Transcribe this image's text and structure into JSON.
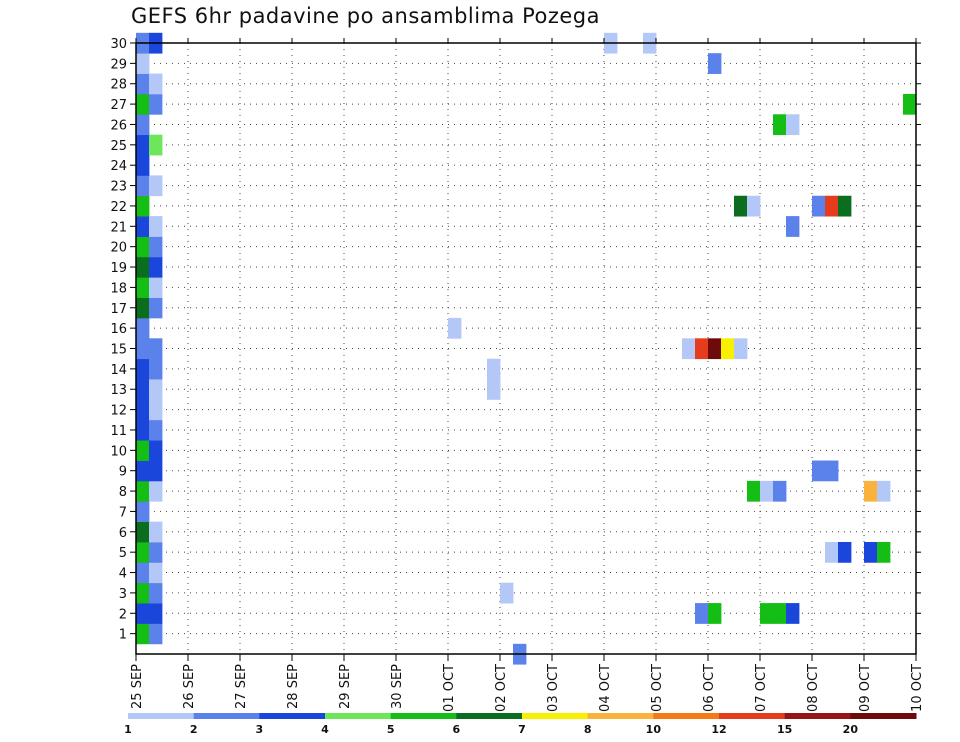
{
  "chart_data": {
    "type": "heatmap",
    "title": "GEFS 6hr padavine po ansamblima Pozega",
    "x_ticks": [
      "25 SEP",
      "26 SEP",
      "27 SEP",
      "28 SEP",
      "29 SEP",
      "30 SEP",
      "01 OCT",
      "02 OCT",
      "03 OCT",
      "04 OCT",
      "05 OCT",
      "06 OCT",
      "07 OCT",
      "08 OCT",
      "09 OCT",
      "10 OCT"
    ],
    "y_ticks": [
      1,
      2,
      3,
      4,
      5,
      6,
      7,
      8,
      9,
      10,
      11,
      12,
      13,
      14,
      15,
      16,
      17,
      18,
      19,
      20,
      21,
      22,
      23,
      24,
      25,
      26,
      27,
      28,
      29,
      30
    ],
    "grid": "dotted",
    "colorbar": {
      "labels": [
        "1",
        "2",
        "3",
        "4",
        "5",
        "6",
        "7",
        "8",
        "10",
        "12",
        "15",
        "20"
      ],
      "colors": [
        "#b4c8f8",
        "#5b82ea",
        "#1a46dc",
        "#6ee65a",
        "#14be14",
        "#0a6e1e",
        "#f8f000",
        "#fab23c",
        "#f87814",
        "#e63c1e",
        "#961414",
        "#6e0a0a"
      ]
    },
    "cells_note_units": "x = step index (6-hourly, 0 = 25 SEP 00Z), y = ensemble member, v = precipitation class 1-12",
    "cells": [
      {
        "x": 0,
        "y": 1,
        "v": 5
      },
      {
        "x": 1,
        "y": 1,
        "v": 2
      },
      {
        "x": 0,
        "y": 2,
        "v": 3
      },
      {
        "x": 1,
        "y": 2,
        "v": 3
      },
      {
        "x": 0,
        "y": 3,
        "v": 5
      },
      {
        "x": 1,
        "y": 3,
        "v": 2
      },
      {
        "x": 0,
        "y": 4,
        "v": 2
      },
      {
        "x": 1,
        "y": 4,
        "v": 1
      },
      {
        "x": 0,
        "y": 5,
        "v": 5
      },
      {
        "x": 1,
        "y": 5,
        "v": 2
      },
      {
        "x": 0,
        "y": 6,
        "v": 6
      },
      {
        "x": 1,
        "y": 6,
        "v": 1
      },
      {
        "x": 0,
        "y": 7,
        "v": 2
      },
      {
        "x": 0,
        "y": 8,
        "v": 5
      },
      {
        "x": 1,
        "y": 8,
        "v": 1
      },
      {
        "x": 0,
        "y": 9,
        "v": 3
      },
      {
        "x": 1,
        "y": 9,
        "v": 3
      },
      {
        "x": 0,
        "y": 10,
        "v": 5
      },
      {
        "x": 1,
        "y": 10,
        "v": 3
      },
      {
        "x": 0,
        "y": 11,
        "v": 3
      },
      {
        "x": 1,
        "y": 11,
        "v": 2
      },
      {
        "x": 0,
        "y": 12,
        "v": 3
      },
      {
        "x": 1,
        "y": 12,
        "v": 1
      },
      {
        "x": 0,
        "y": 13,
        "v": 3
      },
      {
        "x": 1,
        "y": 13,
        "v": 1
      },
      {
        "x": 0,
        "y": 14,
        "v": 3
      },
      {
        "x": 1,
        "y": 14,
        "v": 2
      },
      {
        "x": 0,
        "y": 15,
        "v": 2
      },
      {
        "x": 1,
        "y": 15,
        "v": 2
      },
      {
        "x": 0,
        "y": 16,
        "v": 2
      },
      {
        "x": 0,
        "y": 17,
        "v": 6
      },
      {
        "x": 1,
        "y": 17,
        "v": 2
      },
      {
        "x": 0,
        "y": 18,
        "v": 5
      },
      {
        "x": 1,
        "y": 18,
        "v": 1
      },
      {
        "x": 0,
        "y": 19,
        "v": 6
      },
      {
        "x": 1,
        "y": 19,
        "v": 3
      },
      {
        "x": 0,
        "y": 20,
        "v": 5
      },
      {
        "x": 1,
        "y": 20,
        "v": 2
      },
      {
        "x": 0,
        "y": 21,
        "v": 3
      },
      {
        "x": 1,
        "y": 21,
        "v": 1
      },
      {
        "x": 0,
        "y": 22,
        "v": 5
      },
      {
        "x": 0,
        "y": 23,
        "v": 2
      },
      {
        "x": 1,
        "y": 23,
        "v": 1
      },
      {
        "x": 0,
        "y": 24,
        "v": 3
      },
      {
        "x": 0,
        "y": 25,
        "v": 3
      },
      {
        "x": 1,
        "y": 25,
        "v": 4
      },
      {
        "x": 0,
        "y": 26,
        "v": 2
      },
      {
        "x": 0,
        "y": 27,
        "v": 5
      },
      {
        "x": 1,
        "y": 27,
        "v": 2
      },
      {
        "x": 0,
        "y": 28,
        "v": 2
      },
      {
        "x": 1,
        "y": 28,
        "v": 1
      },
      {
        "x": 0,
        "y": 29,
        "v": 1
      },
      {
        "x": 0,
        "y": 30,
        "v": 2
      },
      {
        "x": 1,
        "y": 30,
        "v": 3
      },
      {
        "x": 24,
        "y": 16,
        "v": 1
      },
      {
        "x": 27,
        "y": 13,
        "v": 1
      },
      {
        "x": 27,
        "y": 14,
        "v": 1
      },
      {
        "x": 28,
        "y": 3,
        "v": 1
      },
      {
        "x": 29,
        "y": 0,
        "v": 2
      },
      {
        "x": 36,
        "y": 30,
        "v": 1
      },
      {
        "x": 39,
        "y": 30,
        "v": 1
      },
      {
        "x": 42,
        "y": 15,
        "v": 1
      },
      {
        "x": 43,
        "y": 15,
        "v": 10
      },
      {
        "x": 44,
        "y": 15,
        "v": 12
      },
      {
        "x": 45,
        "y": 15,
        "v": 7
      },
      {
        "x": 46,
        "y": 15,
        "v": 1
      },
      {
        "x": 43,
        "y": 2,
        "v": 2
      },
      {
        "x": 44,
        "y": 2,
        "v": 5
      },
      {
        "x": 44,
        "y": 29,
        "v": 2
      },
      {
        "x": 46,
        "y": 22,
        "v": 6
      },
      {
        "x": 47,
        "y": 22,
        "v": 1
      },
      {
        "x": 47,
        "y": 8,
        "v": 5
      },
      {
        "x": 48,
        "y": 8,
        "v": 1
      },
      {
        "x": 49,
        "y": 8,
        "v": 2
      },
      {
        "x": 48,
        "y": 2,
        "v": 5
      },
      {
        "x": 49,
        "y": 2,
        "v": 5
      },
      {
        "x": 50,
        "y": 2,
        "v": 3
      },
      {
        "x": 49,
        "y": 26,
        "v": 5
      },
      {
        "x": 50,
        "y": 26,
        "v": 1
      },
      {
        "x": 50,
        "y": 21,
        "v": 2
      },
      {
        "x": 52,
        "y": 9,
        "v": 2
      },
      {
        "x": 53,
        "y": 9,
        "v": 2
      },
      {
        "x": 52,
        "y": 22,
        "v": 2
      },
      {
        "x": 53,
        "y": 22,
        "v": 10
      },
      {
        "x": 54,
        "y": 22,
        "v": 6
      },
      {
        "x": 53,
        "y": 5,
        "v": 1
      },
      {
        "x": 54,
        "y": 5,
        "v": 3
      },
      {
        "x": 56,
        "y": 5,
        "v": 3
      },
      {
        "x": 57,
        "y": 5,
        "v": 5
      },
      {
        "x": 56,
        "y": 8,
        "v": 8
      },
      {
        "x": 57,
        "y": 8,
        "v": 1
      },
      {
        "x": 59,
        "y": 27,
        "v": 5
      }
    ]
  }
}
